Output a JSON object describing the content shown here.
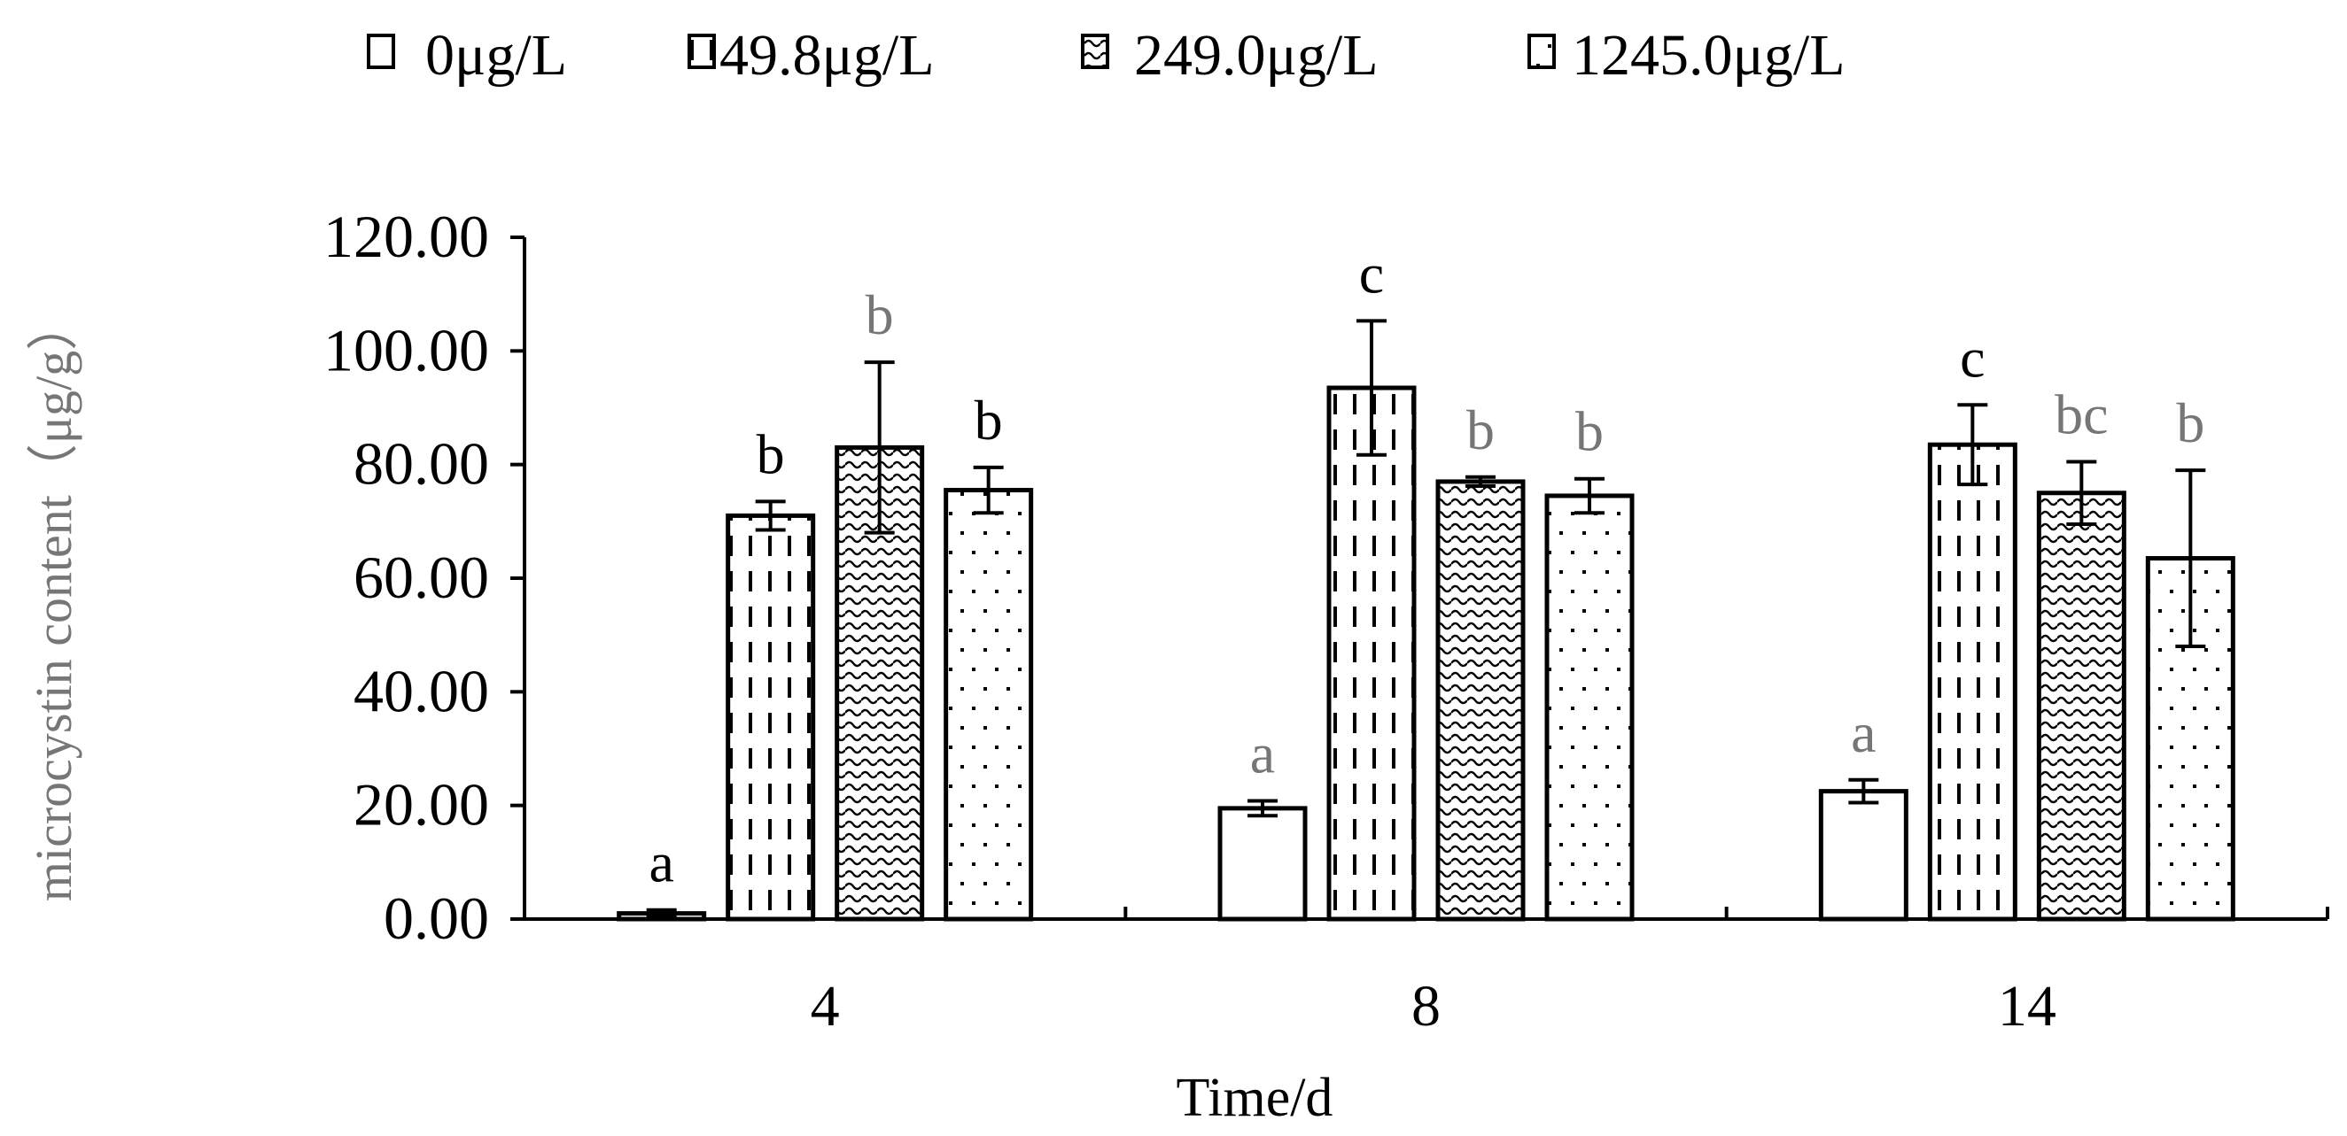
{
  "chart_data": {
    "type": "bar",
    "title": "",
    "xlabel": "Time/d",
    "ylabel": "microcystin content（μg/g）",
    "categories": [
      "4",
      "8",
      "14"
    ],
    "ylim": [
      0,
      120
    ],
    "yticks": [
      "0.00",
      "20.00",
      "40.00",
      "60.00",
      "80.00",
      "100.00",
      "120.00"
    ],
    "legend_position": "top",
    "grid": false,
    "series": [
      {
        "name": "0μg/L",
        "pattern": "none",
        "values": [
          1.0,
          19.5,
          22.5
        ],
        "errors": [
          0.6,
          1.3,
          2.0
        ],
        "letters": [
          "a",
          "a",
          "a"
        ]
      },
      {
        "name": "49.8μg/L",
        "pattern": "dashed",
        "values": [
          71.0,
          93.5,
          83.5
        ],
        "errors": [
          2.5,
          11.8,
          7.0
        ],
        "letters": [
          "b",
          "c",
          "c"
        ]
      },
      {
        "name": "249.0μg/L",
        "pattern": "waves",
        "values": [
          83.0,
          77.0,
          75.0
        ],
        "errors": [
          15.0,
          0.8,
          5.5
        ],
        "letters": [
          "b",
          "b",
          "bc"
        ]
      },
      {
        "name": "1245.0μg/L",
        "pattern": "dots",
        "values": [
          75.5,
          74.5,
          63.5
        ],
        "errors": [
          4.0,
          3.0,
          15.5
        ],
        "letters": [
          "b",
          "b",
          "b"
        ]
      }
    ],
    "letter_colors": [
      [
        "#000000",
        "#000000",
        "#767676",
        "#000000"
      ],
      [
        "#767676",
        "#000000",
        "#767676",
        "#767676"
      ],
      [
        "#767676",
        "#000000",
        "#767676",
        "#767676"
      ]
    ],
    "colors": {
      "bar_fill": "#ffffff",
      "bar_stroke": "#000000",
      "axis": "#000000",
      "ylabel": "#767676"
    }
  }
}
